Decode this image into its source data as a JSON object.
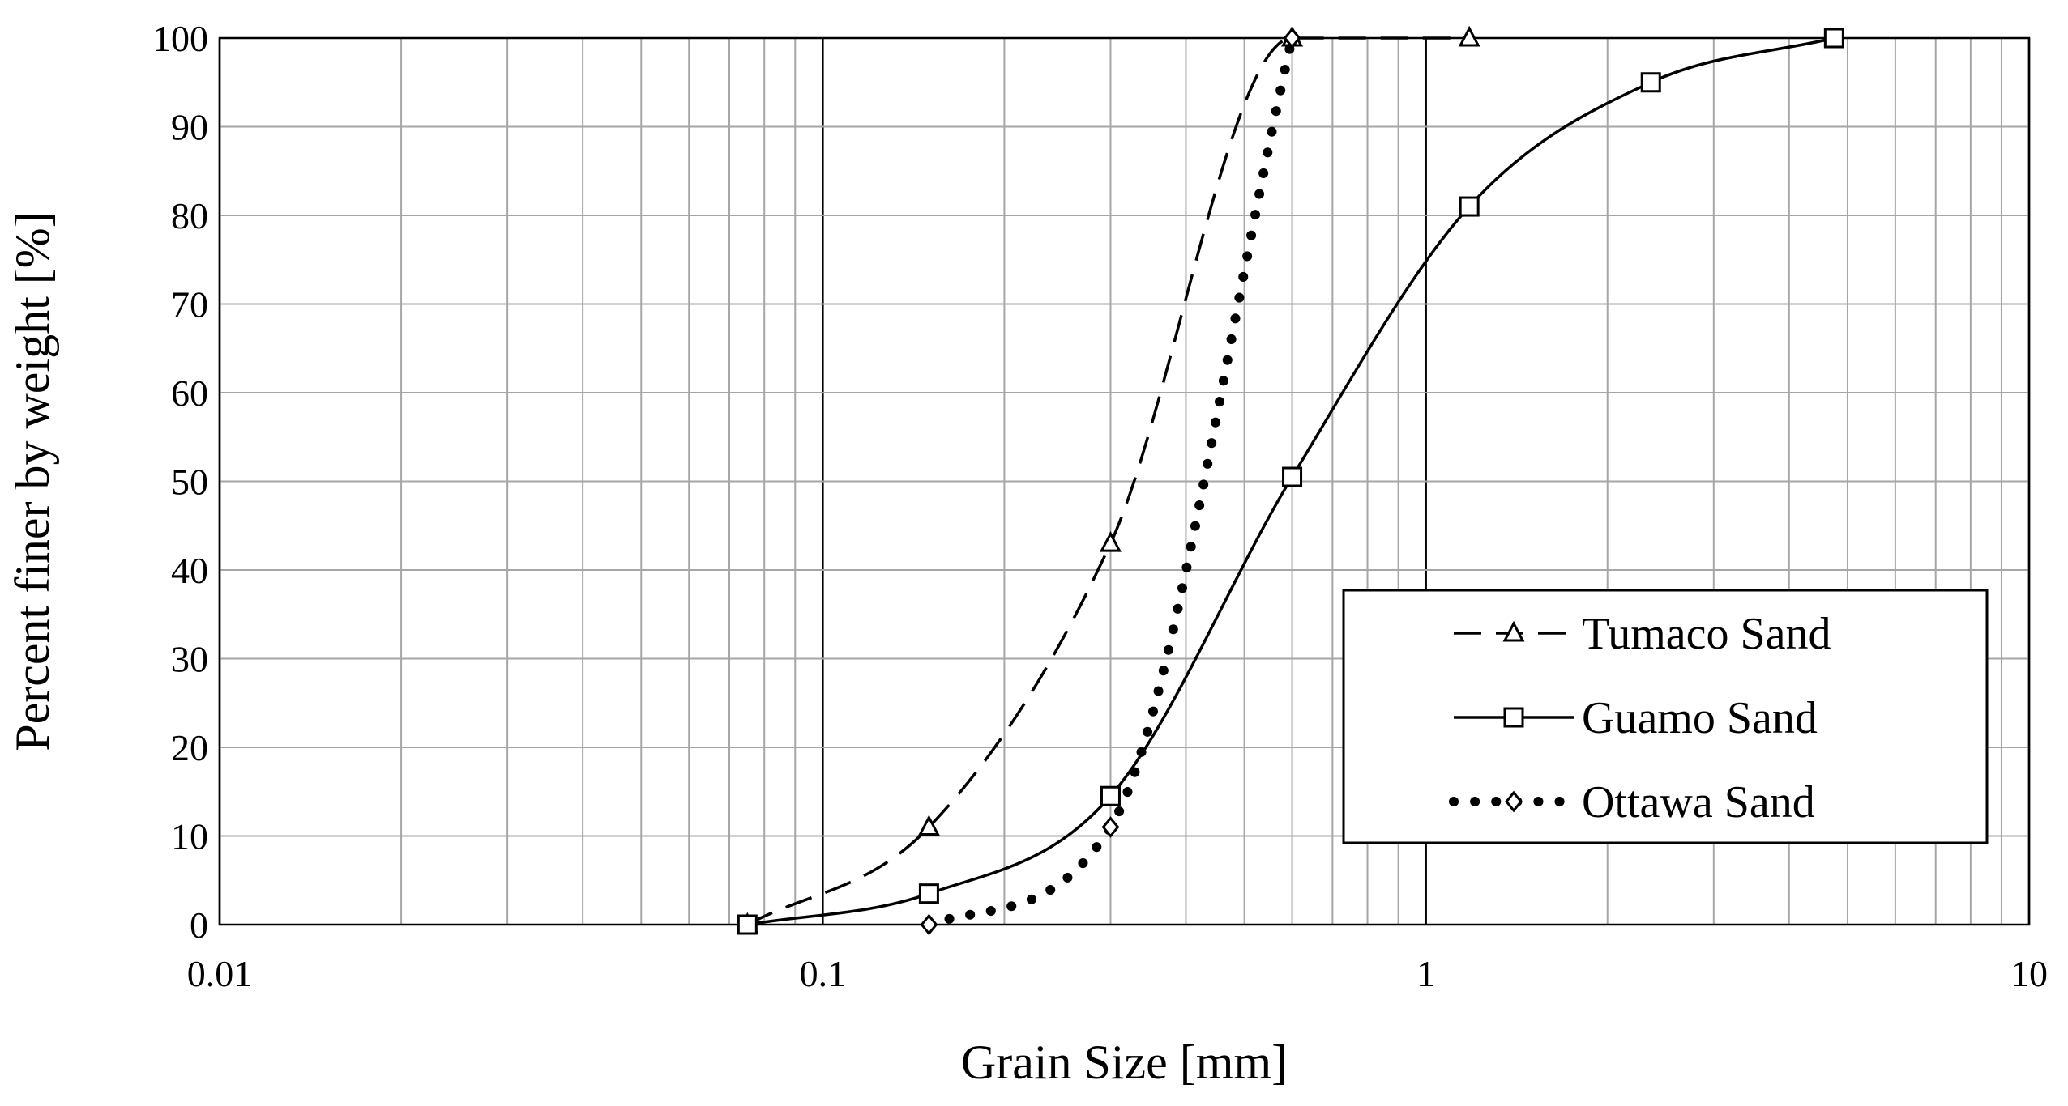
{
  "chart_data": {
    "type": "line",
    "title": "",
    "xlabel": "Grain Size [mm]",
    "ylabel": "Percent finer by weight [%]",
    "xscale": "log",
    "xlim": [
      0.01,
      10
    ],
    "ylim": [
      0,
      100
    ],
    "x_ticks": [
      "0.01",
      "0.1",
      "1",
      "10"
    ],
    "y_ticks": [
      "0",
      "10",
      "20",
      "30",
      "40",
      "50",
      "60",
      "70",
      "80",
      "90",
      "100"
    ],
    "grid": true,
    "legend_position": "bottom-right",
    "series": [
      {
        "name": "Tumaco Sand",
        "line": "dashed",
        "marker": "triangle",
        "x": [
          0.075,
          0.15,
          0.3,
          0.6,
          1.18
        ],
        "y": [
          0,
          11,
          43,
          100,
          100
        ]
      },
      {
        "name": "Guamo Sand",
        "line": "solid",
        "marker": "square",
        "x": [
          0.075,
          0.15,
          0.3,
          0.6,
          1.18,
          2.36,
          4.75
        ],
        "y": [
          0,
          3.5,
          14.5,
          50.5,
          81,
          95,
          100
        ]
      },
      {
        "name": "Ottawa Sand",
        "line": "dotted",
        "marker": "diamond",
        "x": [
          0.15,
          0.3,
          0.6
        ],
        "y": [
          0,
          11,
          100
        ]
      }
    ]
  },
  "colors": {
    "line": "#000000",
    "grid_major": "#000000",
    "grid_minor": "#a6a6a6"
  }
}
